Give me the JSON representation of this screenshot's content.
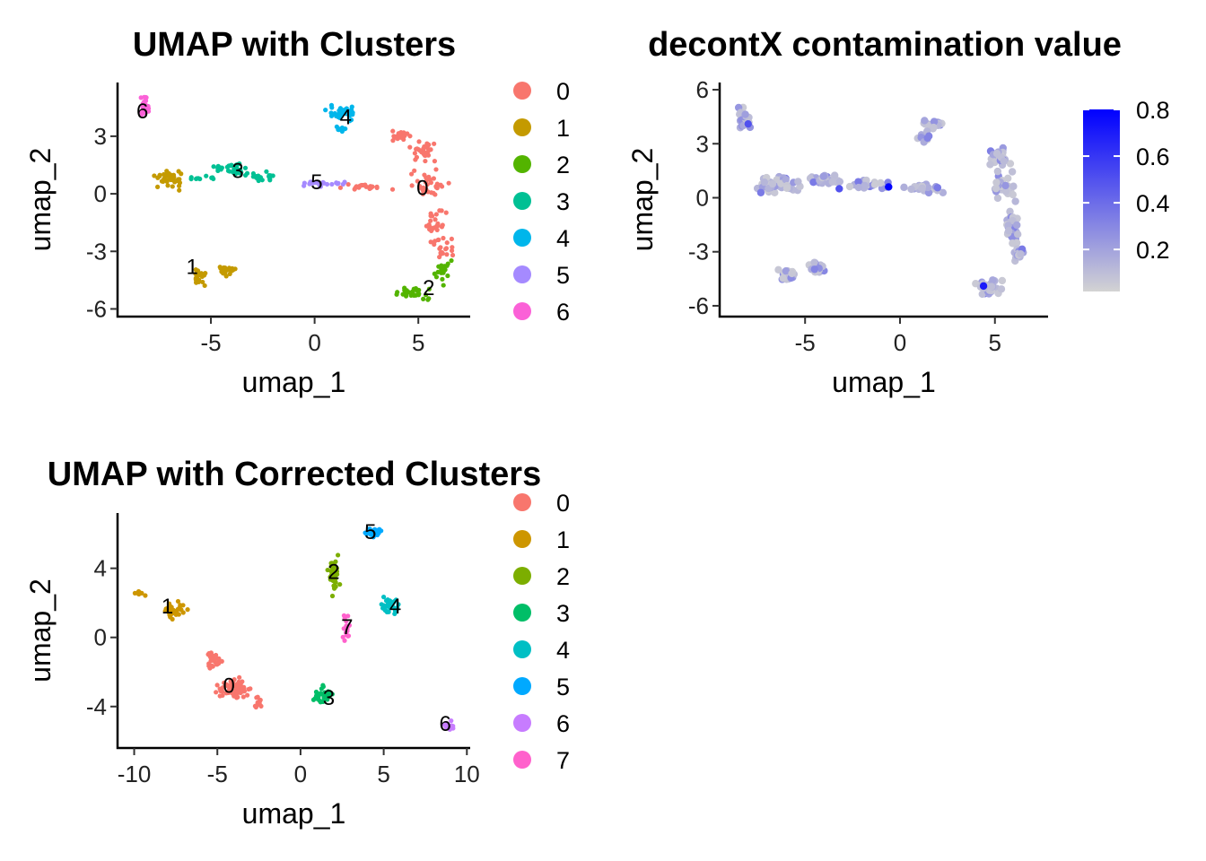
{
  "chart_data": [
    {
      "type": "scatter",
      "title": "UMAP with Clusters",
      "xlabel": "umap_1",
      "ylabel": "umap_2",
      "xlim": [
        -9.5,
        7.5
      ],
      "ylim": [
        -6.4,
        5.8
      ],
      "xticks": [
        -5,
        0,
        5
      ],
      "yticks": [
        -6,
        -3,
        0,
        3
      ],
      "legend": {
        "placement": "right",
        "entries": [
          {
            "label": "0",
            "color": "#F8766D"
          },
          {
            "label": "1",
            "color": "#C49A00"
          },
          {
            "label": "2",
            "color": "#53B400"
          },
          {
            "label": "3",
            "color": "#00C094"
          },
          {
            "label": "4",
            "color": "#00B6EB"
          },
          {
            "label": "5",
            "color": "#A58AFF"
          },
          {
            "label": "6",
            "color": "#FB61D7"
          }
        ]
      },
      "clusters": [
        {
          "label": "0",
          "color": "#F8766D",
          "label_pos": [
            5.2,
            0.3
          ],
          "shapes": [
            [
              4.1,
              3.0,
              0.9,
              0.3,
              24
            ],
            [
              5.2,
              2.2,
              0.8,
              0.6,
              30
            ],
            [
              5.5,
              0.6,
              0.9,
              0.8,
              34
            ],
            [
              2.5,
              0.3,
              1.6,
              0.2,
              22
            ],
            [
              5.8,
              -1.5,
              0.6,
              1.0,
              28
            ],
            [
              6.2,
              -2.8,
              0.5,
              0.6,
              16
            ]
          ]
        },
        {
          "label": "1",
          "color": "#C49A00",
          "label_pos": [
            -5.9,
            -3.8
          ],
          "shapes": [
            [
              -7.0,
              0.8,
              0.8,
              0.6,
              40
            ],
            [
              -5.5,
              -4.3,
              0.5,
              0.5,
              22
            ],
            [
              -4.3,
              -4.0,
              0.5,
              0.4,
              22
            ]
          ]
        },
        {
          "label": "2",
          "color": "#53B400",
          "label_pos": [
            5.5,
            -4.9
          ],
          "shapes": [
            [
              6.2,
              -4.0,
              0.4,
              0.9,
              20
            ],
            [
              4.8,
              -5.2,
              1.0,
              0.5,
              28
            ]
          ]
        },
        {
          "label": "3",
          "color": "#00C094",
          "label_pos": [
            -3.7,
            1.2
          ],
          "shapes": [
            [
              -4.0,
              1.3,
              0.9,
              0.3,
              36
            ],
            [
              -2.5,
              0.9,
              1.0,
              0.3,
              18
            ],
            [
              -5.4,
              0.8,
              0.8,
              0.2,
              10
            ]
          ]
        },
        {
          "label": "4",
          "color": "#00B6EB",
          "label_pos": [
            1.5,
            4.0
          ],
          "shapes": [
            [
              1.3,
              4.2,
              0.8,
              0.4,
              36
            ],
            [
              1.2,
              3.4,
              0.4,
              0.2,
              8
            ]
          ]
        },
        {
          "label": "5",
          "color": "#A58AFF",
          "label_pos": [
            0.1,
            0.6
          ],
          "shapes": [
            [
              0.3,
              0.5,
              1.4,
              0.2,
              22
            ]
          ]
        },
        {
          "label": "6",
          "color": "#FB61D7",
          "label_pos": [
            -8.3,
            4.3
          ],
          "shapes": [
            [
              -8.2,
              4.5,
              0.3,
              0.6,
              22
            ]
          ]
        }
      ]
    },
    {
      "type": "scatter",
      "title": "decontX contamination value",
      "xlabel": "umap_1",
      "ylabel": "umap_2",
      "xlim": [
        -9.5,
        7.8
      ],
      "ylim": [
        -6.6,
        6.4
      ],
      "xticks": [
        -5,
        0,
        5
      ],
      "yticks": [
        -6,
        -3,
        0,
        3,
        6
      ],
      "colorbar": {
        "placement": "right",
        "low_color": "#D3D3D3",
        "high_color": "#0000FF",
        "range": [
          0.02,
          0.8
        ],
        "ticks": [
          "0.2",
          "0.4",
          "0.6",
          "0.8"
        ]
      },
      "high_points": [
        [
          -0.6,
          0.6
        ],
        [
          4.4,
          -4.9
        ],
        [
          -8.0,
          4.1
        ],
        [
          -3.2,
          0.5
        ]
      ],
      "shapes": [
        [
          -8.3,
          4.3,
          0.4,
          0.8,
          22
        ],
        [
          -6.5,
          0.8,
          1.6,
          0.6,
          40
        ],
        [
          -4.0,
          1.0,
          1.0,
          0.4,
          30
        ],
        [
          -1.6,
          0.7,
          1.2,
          0.3,
          18
        ],
        [
          1.3,
          0.5,
          1.6,
          0.3,
          20
        ],
        [
          1.8,
          4.1,
          0.7,
          0.3,
          26
        ],
        [
          1.3,
          3.4,
          0.5,
          0.3,
          8
        ],
        [
          5.2,
          2.3,
          0.8,
          0.6,
          28
        ],
        [
          5.5,
          0.6,
          0.8,
          0.8,
          32
        ],
        [
          5.8,
          -1.5,
          0.6,
          1.0,
          28
        ],
        [
          6.2,
          -3.0,
          0.4,
          0.7,
          18
        ],
        [
          4.7,
          -5.0,
          1.0,
          0.5,
          26
        ],
        [
          -5.9,
          -4.3,
          0.5,
          0.4,
          22
        ],
        [
          -4.3,
          -3.9,
          0.5,
          0.4,
          22
        ]
      ]
    },
    {
      "type": "scatter",
      "title": "UMAP with Corrected Clusters",
      "xlabel": "umap_1",
      "ylabel": "umap_2",
      "xlim": [
        -11,
        10.2
      ],
      "ylim": [
        -6.4,
        7.2
      ],
      "xticks": [
        -10,
        -5,
        0,
        5,
        10
      ],
      "yticks": [
        -4,
        0,
        4
      ],
      "legend": {
        "placement": "right",
        "entries": [
          {
            "label": "0",
            "color": "#F8766D"
          },
          {
            "label": "1",
            "color": "#CD9600"
          },
          {
            "label": "2",
            "color": "#7CAE00"
          },
          {
            "label": "3",
            "color": "#00BE67"
          },
          {
            "label": "4",
            "color": "#00BFC4"
          },
          {
            "label": "5",
            "color": "#00A9FF"
          },
          {
            "label": "6",
            "color": "#C77CFF"
          },
          {
            "label": "7",
            "color": "#FF61CC"
          }
        ]
      },
      "clusters": [
        {
          "label": "0",
          "color": "#F8766D",
          "label_pos": [
            -4.3,
            -2.8
          ],
          "shapes": [
            [
              -5.2,
              -1.3,
              0.6,
              0.9,
              30
            ],
            [
              -4.0,
              -3.0,
              1.2,
              0.7,
              60
            ],
            [
              -2.6,
              -3.7,
              0.3,
              0.4,
              12
            ]
          ]
        },
        {
          "label": "1",
          "color": "#CD9600",
          "label_pos": [
            -8.0,
            1.8
          ],
          "shapes": [
            [
              -9.6,
              2.6,
              0.4,
              0.2,
              10
            ],
            [
              -7.6,
              1.5,
              0.9,
              0.6,
              36
            ]
          ]
        },
        {
          "label": "2",
          "color": "#7CAE00",
          "label_pos": [
            2.0,
            3.8
          ],
          "shapes": [
            [
              2.0,
              3.6,
              0.4,
              1.4,
              36
            ]
          ]
        },
        {
          "label": "3",
          "color": "#00BE67",
          "label_pos": [
            1.7,
            -3.5
          ],
          "shapes": [
            [
              1.5,
              -3.3,
              0.7,
              0.6,
              30
            ]
          ]
        },
        {
          "label": "4",
          "color": "#00BFC4",
          "label_pos": [
            5.7,
            1.8
          ],
          "shapes": [
            [
              5.5,
              1.8,
              0.8,
              0.5,
              32
            ]
          ]
        },
        {
          "label": "5",
          "color": "#00A9FF",
          "label_pos": [
            4.2,
            6.1
          ],
          "shapes": [
            [
              4.4,
              6.1,
              0.6,
              0.3,
              36
            ]
          ]
        },
        {
          "label": "6",
          "color": "#C77CFF",
          "label_pos": [
            8.7,
            -5.0
          ],
          "shapes": [
            [
              8.9,
              -5.1,
              0.3,
              0.3,
              14
            ]
          ]
        },
        {
          "label": "7",
          "color": "#FF61CC",
          "label_pos": [
            2.8,
            0.6
          ],
          "shapes": [
            [
              2.8,
              0.6,
              0.4,
              0.8,
              16
            ]
          ]
        }
      ]
    }
  ]
}
